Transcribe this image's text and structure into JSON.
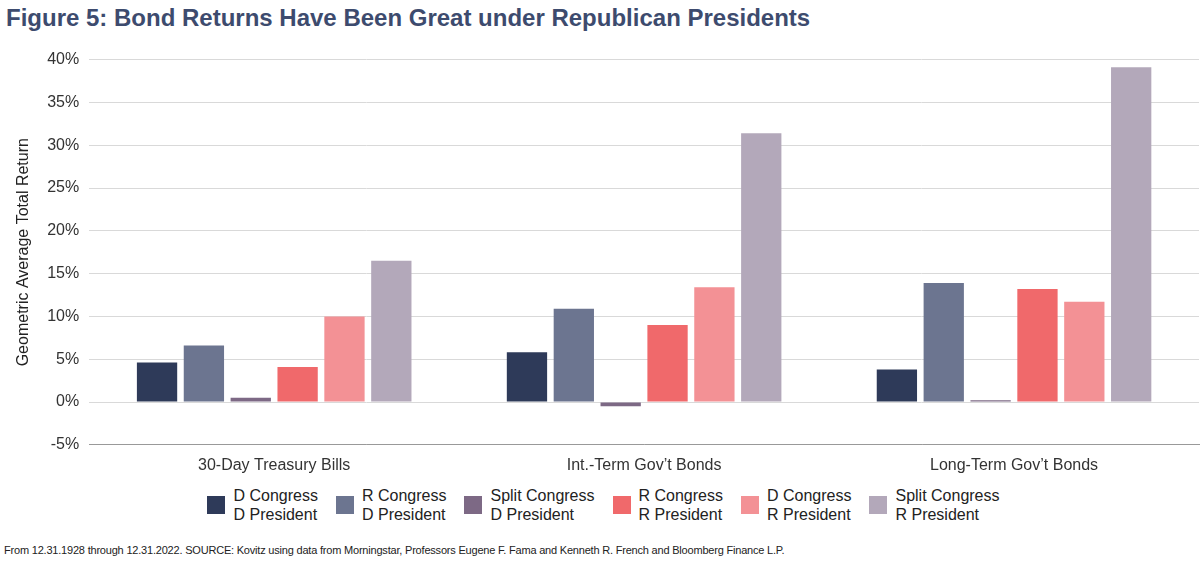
{
  "chart_data": {
    "type": "bar",
    "title": "Figure 5: Bond Returns Have Been Great under Republican Presidents",
    "note": "From 12.31.1928 through 12.31.2022. SOURCE: Kovitz using data from Morningstar, Professors Eugene F. Fama and Kenneth R. French and Bloomberg Finance L.P.",
    "y_label": "Geometric Average Total Return",
    "categories": [
      "30-Day Treasury Bills",
      "Int.-Term Gov’t Bonds",
      "Long-Term Gov’t Bonds"
    ],
    "series": [
      {
        "name": "D Congress\nD President",
        "color": "#2e3a59",
        "values": [
          4.6,
          5.8,
          3.8
        ]
      },
      {
        "name": "R Congress\nD President",
        "color": "#6c7590",
        "values": [
          6.6,
          10.9,
          13.9
        ]
      },
      {
        "name": "Split Congress\nD President",
        "color": "#7d6985",
        "values": [
          0.5,
          -0.5,
          0.2
        ]
      },
      {
        "name": "R Congress\nR President",
        "color": "#f0696b",
        "values": [
          4.1,
          9.0,
          13.2
        ]
      },
      {
        "name": "D Congress\nR President",
        "color": "#f39195",
        "values": [
          10.0,
          13.4,
          11.7
        ]
      },
      {
        "name": "Split Congress\nR President",
        "color": "#b3a8ba",
        "values": [
          16.5,
          31.4,
          39.1
        ]
      }
    ],
    "ylim": [
      -5,
      40
    ],
    "yticks": [
      {
        "value": -5,
        "label": "-5%"
      },
      {
        "value": 0,
        "label": "0%"
      },
      {
        "value": 5,
        "label": "5%"
      },
      {
        "value": 10,
        "label": "10%"
      },
      {
        "value": 15,
        "label": "15%"
      },
      {
        "value": 20,
        "label": "20%"
      },
      {
        "value": 25,
        "label": "25%"
      },
      {
        "value": 30,
        "label": "30%"
      },
      {
        "value": 35,
        "label": "35%"
      },
      {
        "value": 40,
        "label": "40%"
      }
    ],
    "grid": true,
    "legend": "bottom"
  }
}
